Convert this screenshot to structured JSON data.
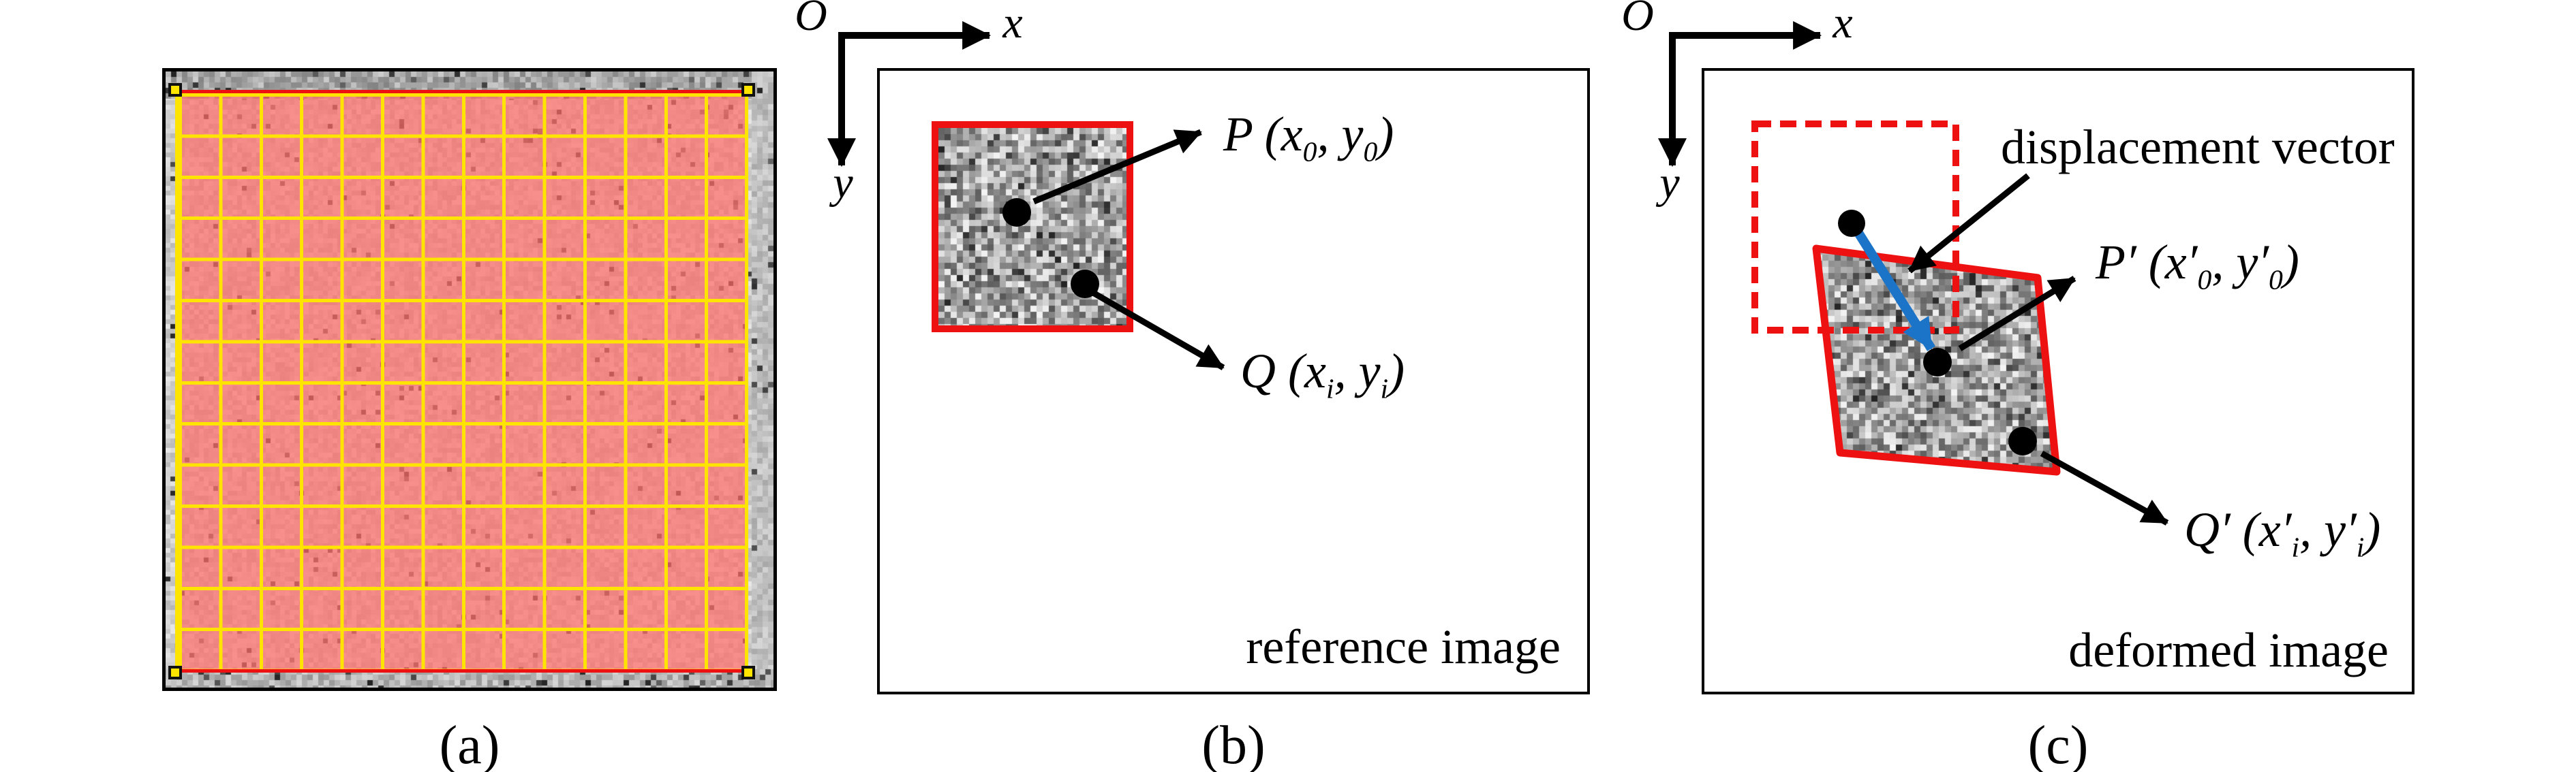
{
  "colors": {
    "red": "#ee1111",
    "yellow": "#ffe400",
    "blue": "#1b74c8",
    "pink_overlay": "rgba(255,110,105,0.72)"
  },
  "figure": {
    "captions": {
      "a": "(a)",
      "b": "(b)",
      "c": "(c)"
    },
    "axes": {
      "origin": "O",
      "x_label": "x",
      "y_label": "y"
    },
    "panel_b": {
      "corner_label": "reference image",
      "point_p": [
        {
          "t": "P ("
        },
        {
          "t": "x"
        },
        {
          "s": "0"
        },
        {
          "t": ", "
        },
        {
          "t": "y"
        },
        {
          "s": "0"
        },
        {
          "t": ")"
        }
      ],
      "point_q": [
        {
          "t": "Q ("
        },
        {
          "t": "x"
        },
        {
          "s": "i"
        },
        {
          "t": ", "
        },
        {
          "t": "y"
        },
        {
          "s": "i"
        },
        {
          "t": ")"
        }
      ]
    },
    "panel_c": {
      "corner_label": "deformed image",
      "vector_label": "displacement vector",
      "point_p": [
        {
          "t": "P′ ("
        },
        {
          "t": "x′"
        },
        {
          "s": "0"
        },
        {
          "t": ", "
        },
        {
          "t": "y′"
        },
        {
          "s": "0"
        },
        {
          "t": ")"
        }
      ],
      "point_q": [
        {
          "t": "Q′ ("
        },
        {
          "t": "x′"
        },
        {
          "s": "i"
        },
        {
          "t": ", "
        },
        {
          "t": "y′"
        },
        {
          "s": "i"
        },
        {
          "t": ")"
        }
      ]
    }
  }
}
